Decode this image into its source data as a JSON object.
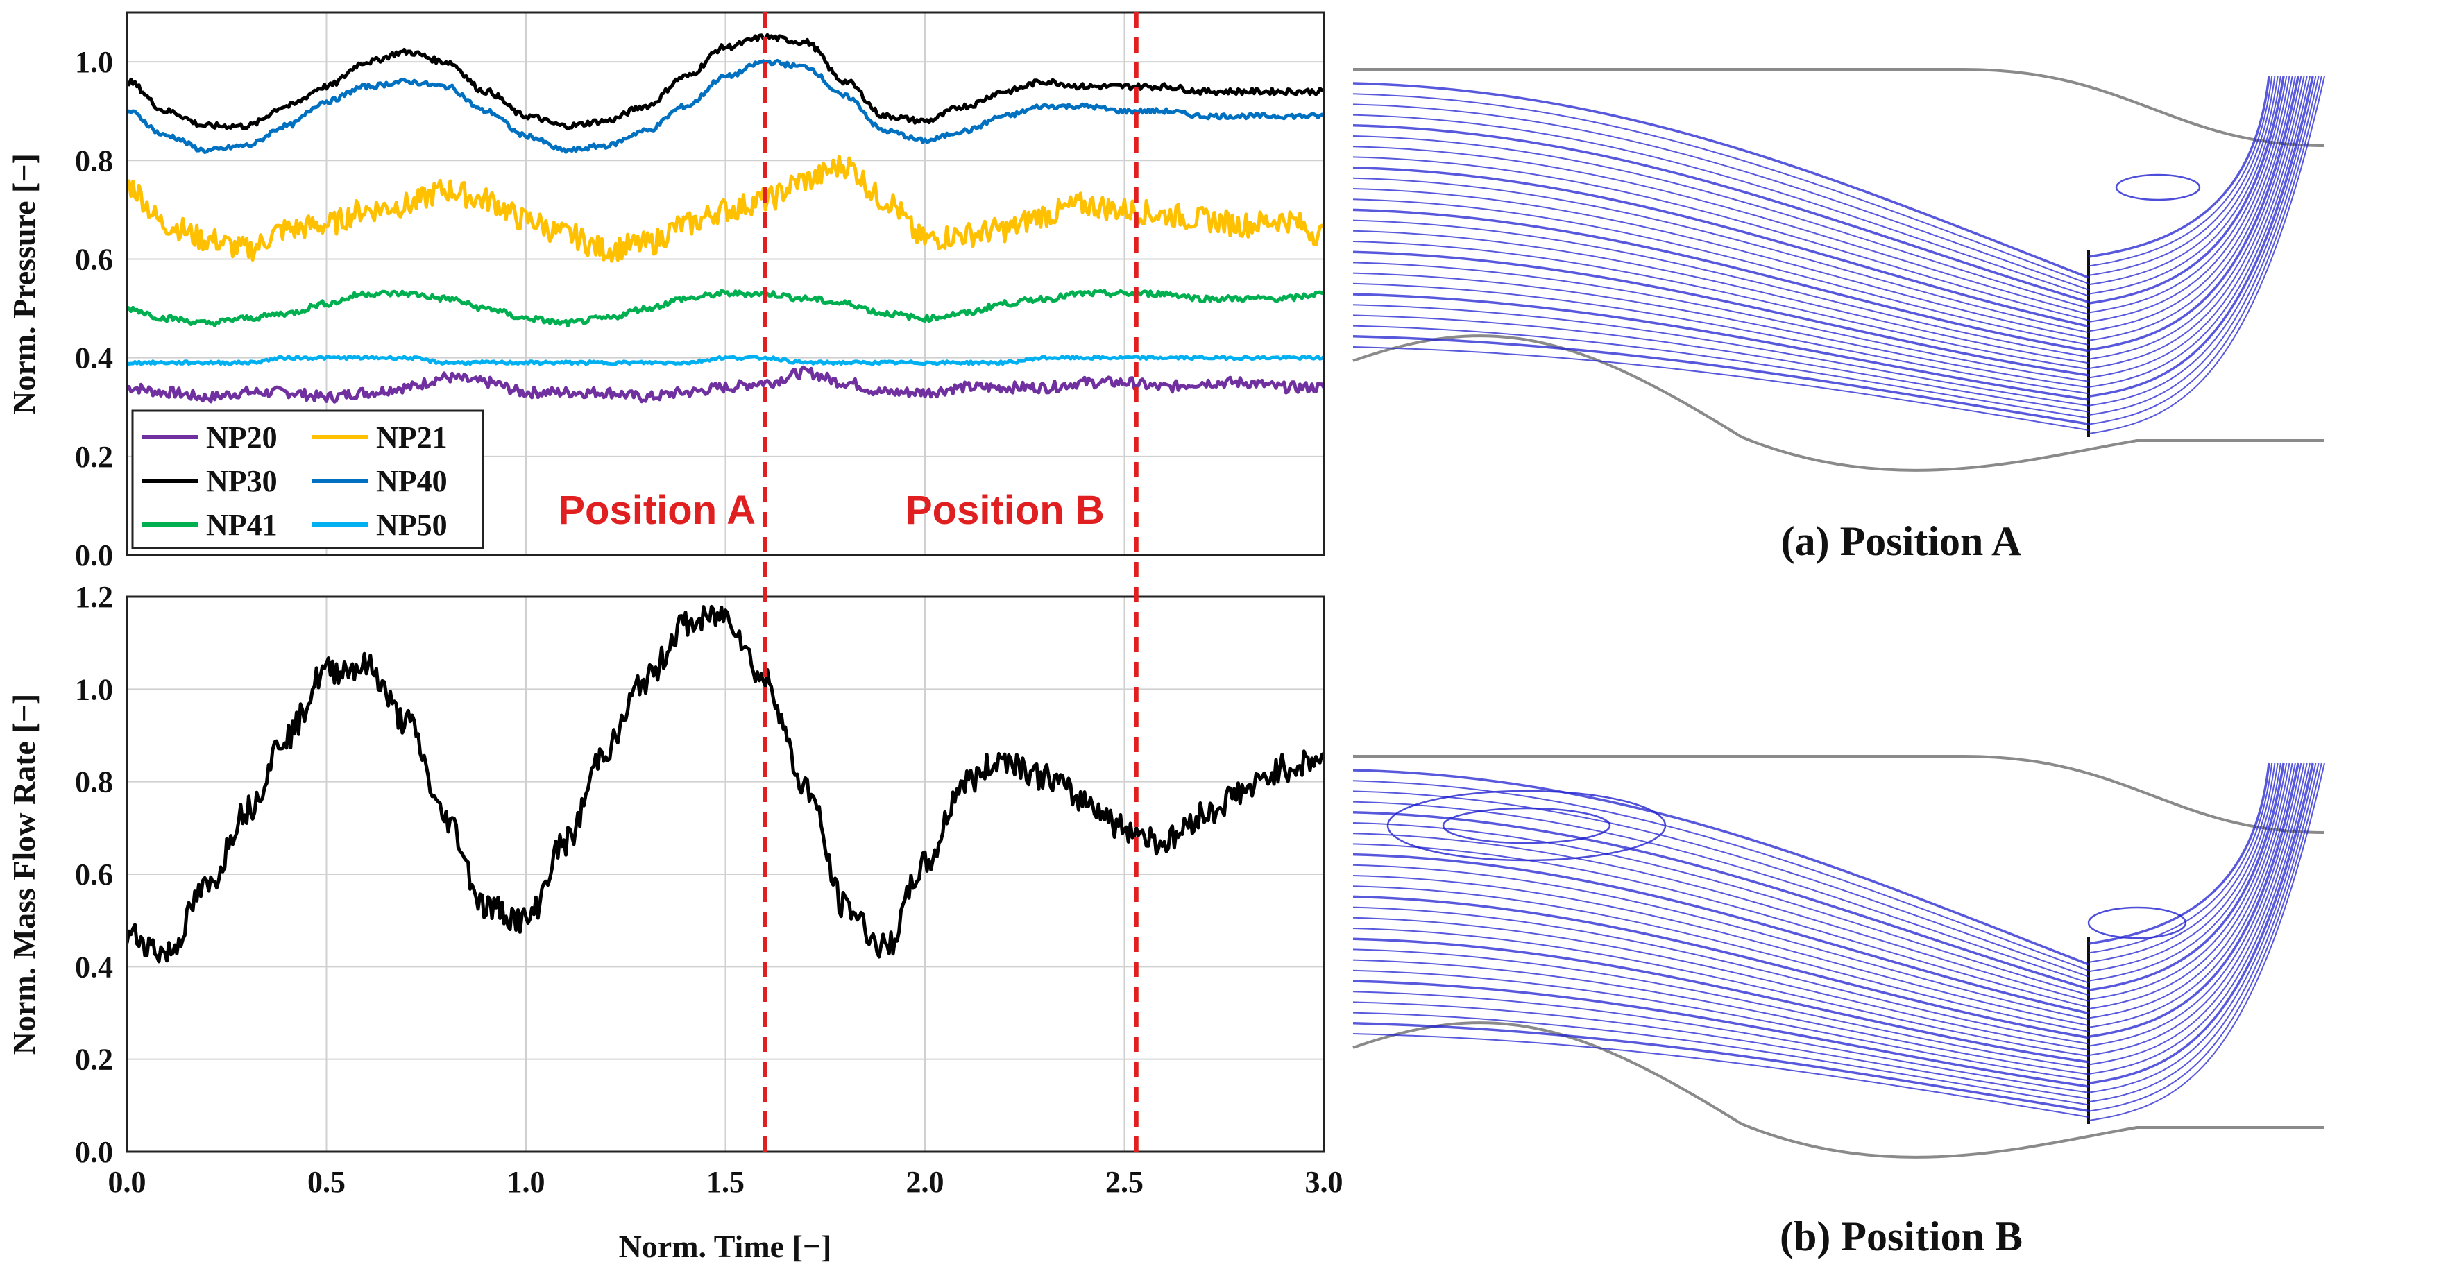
{
  "chart_data": [
    {
      "type": "line",
      "xlabel": "",
      "ylabel": "Norm. Pressure [−]",
      "xlim": [
        0.0,
        3.0
      ],
      "ylim": [
        0.0,
        1.1
      ],
      "yticks": [
        "0.0",
        "0.2",
        "0.4",
        "0.6",
        "0.8",
        "1.0"
      ],
      "grid": true,
      "legend_position": "bottom-left",
      "x": [
        0.0,
        0.1,
        0.2,
        0.3,
        0.4,
        0.5,
        0.6,
        0.7,
        0.8,
        0.9,
        1.0,
        1.1,
        1.2,
        1.3,
        1.4,
        1.5,
        1.6,
        1.7,
        1.8,
        1.9,
        2.0,
        2.1,
        2.2,
        2.3,
        2.4,
        2.5,
        2.6,
        2.7,
        2.8,
        2.9,
        3.0
      ],
      "series": [
        {
          "name": "NP20",
          "color": "#7030A0",
          "values": [
            0.34,
            0.33,
            0.32,
            0.33,
            0.33,
            0.32,
            0.33,
            0.34,
            0.36,
            0.35,
            0.33,
            0.33,
            0.33,
            0.32,
            0.33,
            0.34,
            0.35,
            0.37,
            0.35,
            0.33,
            0.33,
            0.34,
            0.34,
            0.34,
            0.35,
            0.35,
            0.34,
            0.35,
            0.35,
            0.34,
            0.34
          ]
        },
        {
          "name": "NP21",
          "color": "#FFC000",
          "values": [
            0.75,
            0.67,
            0.64,
            0.62,
            0.66,
            0.67,
            0.7,
            0.71,
            0.74,
            0.72,
            0.68,
            0.65,
            0.62,
            0.63,
            0.67,
            0.7,
            0.72,
            0.76,
            0.79,
            0.72,
            0.64,
            0.65,
            0.66,
            0.69,
            0.71,
            0.7,
            0.69,
            0.68,
            0.67,
            0.68,
            0.65
          ]
        },
        {
          "name": "NP30",
          "color": "#000000",
          "values": [
            0.96,
            0.9,
            0.87,
            0.87,
            0.91,
            0.95,
            1.0,
            1.02,
            1.0,
            0.94,
            0.89,
            0.87,
            0.88,
            0.91,
            0.97,
            1.03,
            1.05,
            1.04,
            0.96,
            0.89,
            0.88,
            0.91,
            0.94,
            0.96,
            0.95,
            0.95,
            0.95,
            0.94,
            0.94,
            0.94,
            0.94
          ]
        },
        {
          "name": "NP40",
          "color": "#0070C0",
          "values": [
            0.9,
            0.85,
            0.82,
            0.83,
            0.87,
            0.92,
            0.95,
            0.96,
            0.95,
            0.9,
            0.85,
            0.82,
            0.83,
            0.86,
            0.91,
            0.97,
            1.0,
            0.99,
            0.93,
            0.86,
            0.84,
            0.86,
            0.89,
            0.91,
            0.91,
            0.9,
            0.9,
            0.89,
            0.89,
            0.89,
            0.89
          ]
        },
        {
          "name": "NP41",
          "color": "#00B050",
          "values": [
            0.5,
            0.48,
            0.47,
            0.48,
            0.49,
            0.51,
            0.53,
            0.53,
            0.52,
            0.5,
            0.48,
            0.47,
            0.48,
            0.5,
            0.52,
            0.53,
            0.53,
            0.52,
            0.51,
            0.49,
            0.48,
            0.49,
            0.51,
            0.52,
            0.53,
            0.53,
            0.53,
            0.52,
            0.52,
            0.52,
            0.53
          ]
        },
        {
          "name": "NP50",
          "color": "#00B0F0",
          "values": [
            0.39,
            0.39,
            0.39,
            0.39,
            0.4,
            0.4,
            0.4,
            0.4,
            0.39,
            0.39,
            0.39,
            0.39,
            0.39,
            0.39,
            0.39,
            0.4,
            0.4,
            0.39,
            0.39,
            0.39,
            0.39,
            0.39,
            0.39,
            0.4,
            0.4,
            0.4,
            0.4,
            0.4,
            0.4,
            0.4,
            0.4
          ]
        }
      ],
      "annotations": [
        {
          "text": "Position A",
          "x": 1.6
        },
        {
          "text": "Position B",
          "x": 2.53
        }
      ]
    },
    {
      "type": "line",
      "xlabel": "Norm. Time [−]",
      "ylabel": "Norm. Mass Flow Rate [−]",
      "xlim": [
        0.0,
        3.0
      ],
      "ylim": [
        0.0,
        1.2
      ],
      "xticks": [
        "0.0",
        "0.5",
        "1.0",
        "1.5",
        "2.0",
        "2.5",
        "3.0"
      ],
      "yticks": [
        "0.0",
        "0.2",
        "0.4",
        "0.6",
        "0.8",
        "1.0",
        "1.2"
      ],
      "grid": true,
      "x": [
        0.0,
        0.1,
        0.2,
        0.3,
        0.4,
        0.5,
        0.6,
        0.7,
        0.8,
        0.9,
        1.0,
        1.1,
        1.2,
        1.3,
        1.4,
        1.5,
        1.6,
        1.7,
        1.8,
        1.9,
        2.0,
        2.1,
        2.2,
        2.3,
        2.4,
        2.5,
        2.6,
        2.7,
        2.8,
        2.9,
        3.0
      ],
      "series": [
        {
          "name": "Mass Flow",
          "color": "#000000",
          "values": [
            0.47,
            0.43,
            0.57,
            0.74,
            0.9,
            1.04,
            1.05,
            0.93,
            0.72,
            0.53,
            0.5,
            0.67,
            0.87,
            1.02,
            1.14,
            1.16,
            1.02,
            0.79,
            0.53,
            0.44,
            0.62,
            0.8,
            0.85,
            0.81,
            0.76,
            0.7,
            0.67,
            0.73,
            0.78,
            0.83,
            0.85
          ]
        }
      ],
      "vlines": [
        1.6,
        2.53
      ]
    }
  ],
  "flow_panels": [
    {
      "caption": "(a) Position A"
    },
    {
      "caption": "(b) Position B"
    }
  ],
  "colors": {
    "marker_line": "#E02020",
    "streamline": "#2020D0"
  }
}
